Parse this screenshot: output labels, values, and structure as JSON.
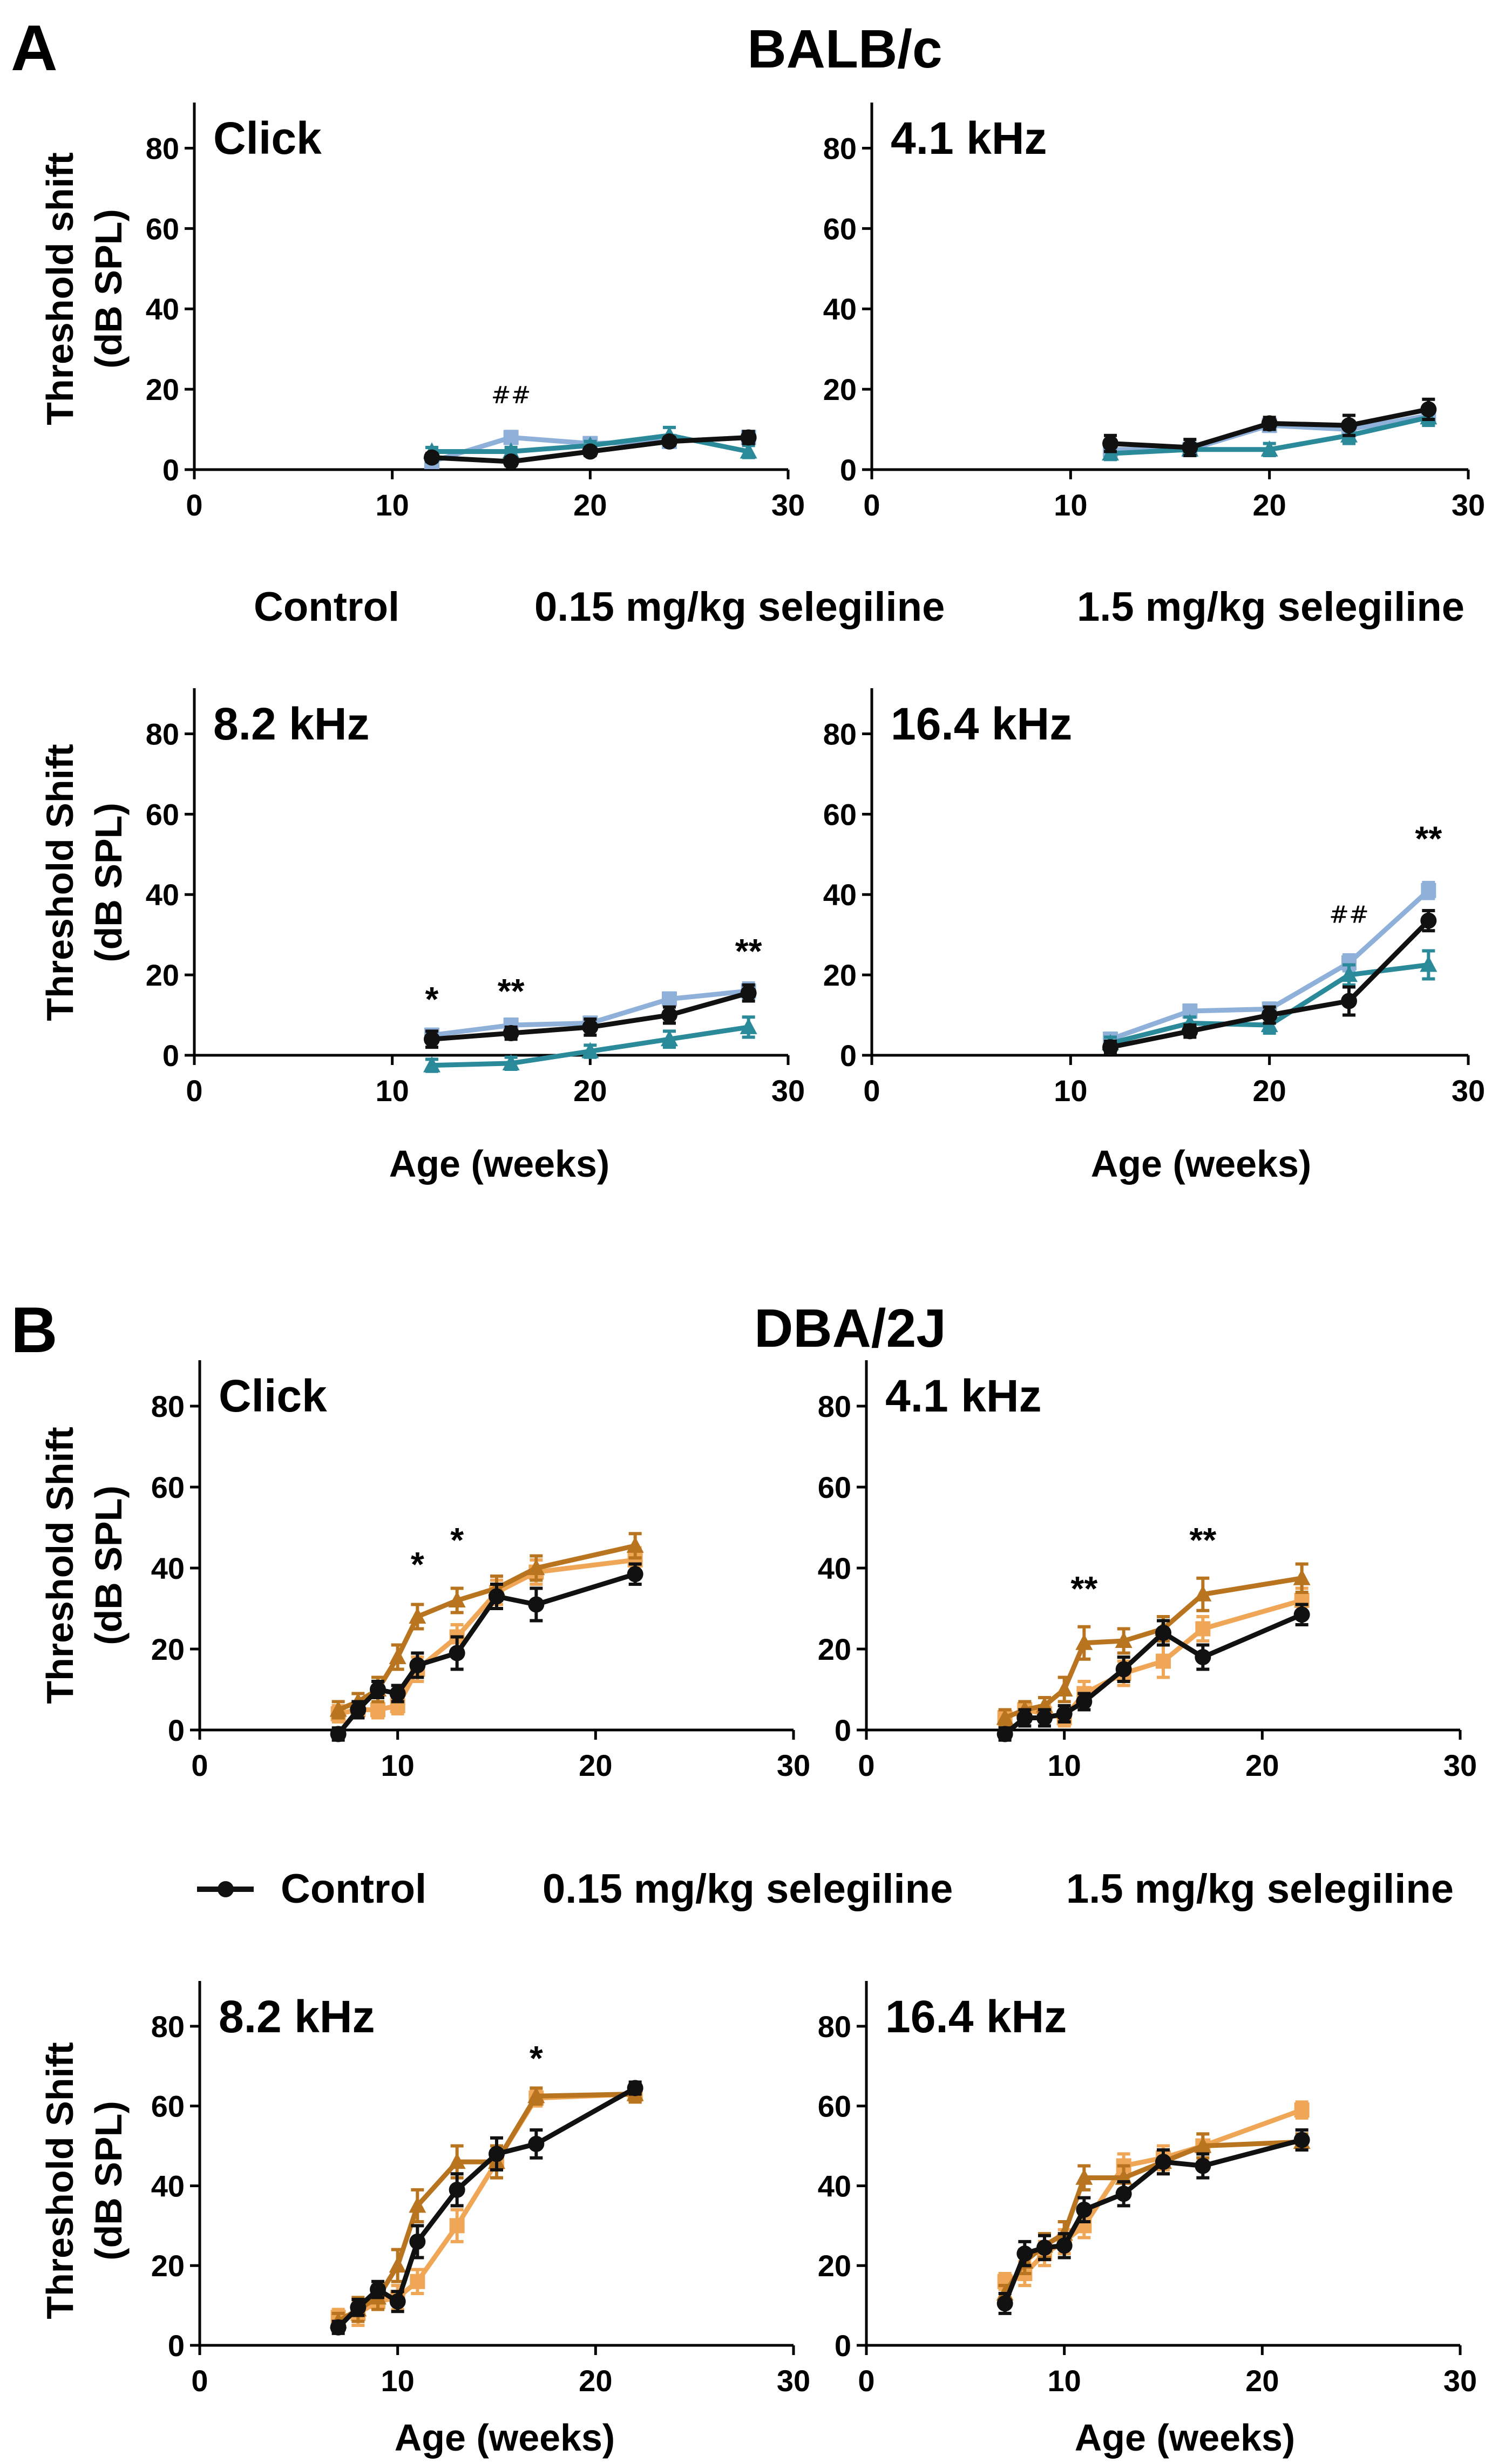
{
  "figure": {
    "section_a": {
      "letter": "A",
      "title": "BALB/c"
    },
    "section_b": {
      "letter": "B",
      "title": "DBA/2J"
    },
    "xaxis_label": "Age (weeks)",
    "ylabel_a_top": [
      "Threshold shift",
      "(dB SPL)"
    ],
    "ylabel_rest": [
      "Threshold Shift",
      "(dB SPL)"
    ],
    "legend_a": [
      "Control",
      "0.15 mg/kg selegiline",
      "1.5 mg/kg selegiline"
    ],
    "legend_b": [
      "Control",
      "0.15 mg/kg selegiline",
      "1.5 mg/kg selegiline"
    ]
  },
  "colors": {
    "control": "#111111",
    "balb_015": "#8fb1d9",
    "balb_15": "#2b8a9a",
    "dba_015": "#f0a657",
    "dba_15": "#b8741f"
  },
  "chart_data": [
    {
      "type": "line",
      "panel": "BALB/c Click",
      "title": "Click",
      "xlim": [
        0,
        30
      ],
      "ylim": [
        0,
        90
      ],
      "xticks": [
        0,
        10,
        20,
        30
      ],
      "yticks": [
        0,
        20,
        40,
        60,
        80
      ],
      "ylabel": "Threshold shift (dB SPL)",
      "xlabel": "",
      "series": [
        {
          "name": "0.15 mg/kg selegiline",
          "color": "#8fb1d9",
          "x": [
            12,
            16,
            20,
            24,
            28
          ],
          "y": [
            2,
            8,
            6.5,
            7,
            8
          ],
          "err": [
            1,
            1.5,
            1,
            1.5,
            1
          ]
        },
        {
          "name": "1.5 mg/kg selegiline",
          "color": "#2b8a9a",
          "x": [
            12,
            16,
            20,
            24,
            28
          ],
          "y": [
            4.5,
            4.5,
            6,
            8.5,
            4.5
          ],
          "err": [
            1,
            1,
            1,
            2,
            1.5
          ]
        },
        {
          "name": "Control",
          "color": "#111111",
          "x": [
            12,
            16,
            20,
            24,
            28
          ],
          "y": [
            3,
            2,
            4.5,
            7,
            8
          ],
          "err": [
            1,
            1,
            1,
            1,
            1.5
          ]
        }
      ],
      "annotations": [
        {
          "x": 16,
          "y": 16.5,
          "text": "##"
        }
      ]
    },
    {
      "type": "line",
      "panel": "BALB/c 4.1 kHz",
      "title": "4.1 kHz",
      "xlim": [
        0,
        30
      ],
      "ylim": [
        0,
        90
      ],
      "xticks": [
        0,
        10,
        20,
        30
      ],
      "yticks": [
        0,
        20,
        40,
        60,
        80
      ],
      "ylabel": "",
      "xlabel": "",
      "series": [
        {
          "name": "0.15 mg/kg selegiline",
          "color": "#8fb1d9",
          "x": [
            12,
            16,
            20,
            24,
            28
          ],
          "y": [
            5,
            5,
            11,
            10,
            13.5
          ],
          "err": [
            1.5,
            1.5,
            1.5,
            2,
            2
          ]
        },
        {
          "name": "1.5 mg/kg selegiline",
          "color": "#2b8a9a",
          "x": [
            12,
            16,
            20,
            24,
            28
          ],
          "y": [
            4,
            5,
            5,
            8.5,
            13
          ],
          "err": [
            1.5,
            1.5,
            1.5,
            2,
            2
          ]
        },
        {
          "name": "Control",
          "color": "#111111",
          "x": [
            12,
            16,
            20,
            24,
            28
          ],
          "y": [
            6.5,
            5.5,
            11.5,
            11,
            15
          ],
          "err": [
            2,
            2,
            1.5,
            2.5,
            2.5
          ]
        }
      ],
      "annotations": []
    },
    {
      "type": "line",
      "panel": "BALB/c 8.2 kHz",
      "title": "8.2 kHz",
      "xlim": [
        0,
        30
      ],
      "ylim": [
        0,
        90
      ],
      "xticks": [
        0,
        10,
        20,
        30
      ],
      "yticks": [
        0,
        20,
        40,
        60,
        80
      ],
      "ylabel": "Threshold Shift (dB SPL)",
      "xlabel": "Age (weeks)",
      "series": [
        {
          "name": "0.15 mg/kg selegiline",
          "color": "#8fb1d9",
          "x": [
            12,
            16,
            20,
            24,
            28
          ],
          "y": [
            5,
            7.5,
            8,
            14,
            16
          ],
          "err": [
            1.5,
            1.5,
            1.5,
            1.5,
            2
          ]
        },
        {
          "name": "1.5 mg/kg selegiline",
          "color": "#2b8a9a",
          "x": [
            12,
            16,
            20,
            24,
            28
          ],
          "y": [
            -2.5,
            -2,
            1,
            4,
            7
          ],
          "err": [
            1.5,
            1.5,
            1.5,
            2,
            2.5
          ]
        },
        {
          "name": "Control",
          "color": "#111111",
          "x": [
            12,
            16,
            20,
            24,
            28
          ],
          "y": [
            4,
            5.5,
            7,
            10,
            15.5
          ],
          "err": [
            2,
            1.5,
            2,
            2,
            2
          ]
        }
      ],
      "annotations": [
        {
          "x": 12,
          "y": 11,
          "text": "*"
        },
        {
          "x": 16,
          "y": 13,
          "text": "**"
        },
        {
          "x": 28,
          "y": 23,
          "text": "**"
        }
      ]
    },
    {
      "type": "line",
      "panel": "BALB/c 16.4 kHz",
      "title": "16.4 kHz",
      "xlim": [
        0,
        30
      ],
      "ylim": [
        0,
        90
      ],
      "xticks": [
        0,
        10,
        20,
        30
      ],
      "yticks": [
        0,
        20,
        40,
        60,
        80
      ],
      "ylabel": "",
      "xlabel": "Age (weeks)",
      "series": [
        {
          "name": "0.15 mg/kg selegiline",
          "color": "#8fb1d9",
          "x": [
            12,
            16,
            20,
            24,
            28
          ],
          "y": [
            4,
            11,
            11.5,
            23,
            41
          ],
          "err": [
            1.5,
            1.5,
            1.5,
            2,
            2
          ]
        },
        {
          "name": "1.5 mg/kg selegiline",
          "color": "#2b8a9a",
          "x": [
            12,
            16,
            20,
            24,
            28
          ],
          "y": [
            3,
            8,
            7.5,
            20,
            22.5
          ],
          "err": [
            1.5,
            1.5,
            2,
            2.5,
            3.5
          ]
        },
        {
          "name": "Control",
          "color": "#111111",
          "x": [
            12,
            16,
            20,
            24,
            28
          ],
          "y": [
            2,
            6,
            10,
            13.5,
            33.5
          ],
          "err": [
            1.5,
            1.5,
            2,
            3.5,
            2.5
          ]
        }
      ],
      "annotations": [
        {
          "x": 24,
          "y": 33,
          "text": "##"
        },
        {
          "x": 28,
          "y": 51,
          "text": "**"
        }
      ]
    },
    {
      "type": "line",
      "panel": "DBA/2J Click",
      "title": "Click",
      "xlim": [
        0,
        30
      ],
      "ylim": [
        0,
        90
      ],
      "xticks": [
        0,
        10,
        20,
        30
      ],
      "yticks": [
        0,
        20,
        40,
        60,
        80
      ],
      "ylabel": "Threshold Shift (dB SPL)",
      "xlabel": "",
      "series": [
        {
          "name": "0.15 mg/kg selegiline",
          "color": "#f0a657",
          "x": [
            7,
            8,
            9,
            10,
            11,
            13,
            15,
            17,
            22
          ],
          "y": [
            4,
            5,
            5,
            6,
            15,
            23,
            34,
            39,
            42
          ],
          "err": [
            2,
            2,
            2,
            2,
            3,
            3,
            3,
            3,
            3
          ]
        },
        {
          "name": "1.5 mg/kg selegiline",
          "color": "#b8741f",
          "x": [
            7,
            8,
            9,
            10,
            11,
            13,
            15,
            17,
            22
          ],
          "y": [
            5,
            7,
            10,
            18,
            28,
            32,
            35,
            40,
            45.5
          ],
          "err": [
            2,
            2,
            3,
            3,
            3,
            3,
            3,
            3,
            3
          ]
        },
        {
          "name": "Control",
          "color": "#111111",
          "x": [
            7,
            8,
            9,
            10,
            11,
            13,
            15,
            17,
            22
          ],
          "y": [
            -1,
            5,
            10,
            9,
            16,
            19,
            33,
            31,
            38.5
          ],
          "err": [
            1.5,
            2,
            2,
            2,
            3,
            4,
            3,
            4,
            2.5
          ]
        }
      ],
      "annotations": [
        {
          "x": 11,
          "y": 38,
          "text": "*"
        },
        {
          "x": 13,
          "y": 44,
          "text": "*"
        }
      ]
    },
    {
      "type": "line",
      "panel": "DBA/2J 4.1 kHz",
      "title": "4.1 kHz",
      "xlim": [
        0,
        30
      ],
      "ylim": [
        0,
        90
      ],
      "xticks": [
        0,
        10,
        20,
        30
      ],
      "yticks": [
        0,
        20,
        40,
        60,
        80
      ],
      "ylabel": "",
      "xlabel": "",
      "series": [
        {
          "name": "0.15 mg/kg selegiline",
          "color": "#f0a657",
          "x": [
            7,
            8,
            9,
            10,
            11,
            13,
            15,
            17,
            22
          ],
          "y": [
            3,
            5,
            4,
            3,
            9,
            14,
            17,
            25,
            32
          ],
          "err": [
            2,
            2,
            2,
            2,
            3,
            3,
            4,
            3,
            3
          ]
        },
        {
          "name": "1.5 mg/kg selegiline",
          "color": "#b8741f",
          "x": [
            7,
            8,
            9,
            10,
            11,
            13,
            15,
            17,
            22
          ],
          "y": [
            3,
            5,
            6,
            10,
            21.5,
            22,
            25,
            33.5,
            37.5
          ],
          "err": [
            2,
            2,
            2,
            3,
            4,
            3,
            3,
            4,
            3.5
          ]
        },
        {
          "name": "Control",
          "color": "#111111",
          "x": [
            7,
            8,
            9,
            10,
            11,
            13,
            15,
            17,
            22
          ],
          "y": [
            -1,
            3,
            3,
            4,
            7,
            15,
            24,
            18,
            28.5
          ],
          "err": [
            1.5,
            2,
            2,
            2,
            2,
            3,
            3,
            3,
            2.5
          ]
        }
      ],
      "annotations": [
        {
          "x": 11,
          "y": 32,
          "text": "**"
        },
        {
          "x": 17,
          "y": 44,
          "text": "**"
        }
      ]
    },
    {
      "type": "line",
      "panel": "DBA/2J 8.2 kHz",
      "title": "8.2 kHz",
      "xlim": [
        0,
        30
      ],
      "ylim": [
        0,
        90
      ],
      "xticks": [
        0,
        10,
        20,
        30
      ],
      "yticks": [
        0,
        20,
        40,
        60,
        80
      ],
      "ylabel": "Threshold Shift (dB SPL)",
      "xlabel": "Age (weeks)",
      "series": [
        {
          "name": "0.15 mg/kg selegiline",
          "color": "#f0a657",
          "x": [
            7,
            8,
            9,
            10,
            11,
            13,
            15,
            17,
            22
          ],
          "y": [
            7,
            8,
            11,
            12,
            16,
            30,
            46,
            62,
            63
          ],
          "err": [
            2,
            3,
            2,
            3,
            3,
            4,
            4,
            2,
            2
          ]
        },
        {
          "name": "1.5 mg/kg selegiline",
          "color": "#b8741f",
          "x": [
            7,
            8,
            9,
            10,
            11,
            13,
            15,
            17,
            22
          ],
          "y": [
            6,
            9,
            12,
            20,
            35,
            46,
            46,
            62.5,
            63
          ],
          "err": [
            2,
            3,
            3,
            4,
            4,
            4,
            4,
            2,
            2
          ]
        },
        {
          "name": "Control",
          "color": "#111111",
          "x": [
            7,
            8,
            9,
            10,
            11,
            13,
            15,
            17,
            22
          ],
          "y": [
            4.5,
            9.5,
            14,
            11,
            26,
            39,
            48,
            50.5,
            64.5
          ],
          "err": [
            1.5,
            2,
            2,
            2.5,
            4,
            4,
            4,
            3.5,
            1.5
          ]
        }
      ],
      "annotations": [
        {
          "x": 17,
          "y": 69,
          "text": "*"
        }
      ]
    },
    {
      "type": "line",
      "panel": "DBA/2J 16.4 kHz",
      "title": "16.4 kHz",
      "xlim": [
        0,
        30
      ],
      "ylim": [
        0,
        90
      ],
      "xticks": [
        0,
        10,
        20,
        30
      ],
      "yticks": [
        0,
        20,
        40,
        60,
        80
      ],
      "ylabel": "",
      "xlabel": "Age (weeks)",
      "series": [
        {
          "name": "0.15 mg/kg selegiline",
          "color": "#f0a657",
          "x": [
            7,
            8,
            9,
            10,
            11,
            13,
            15,
            17,
            22
          ],
          "y": [
            16,
            18,
            23,
            26,
            30,
            45,
            47,
            50,
            59
          ],
          "err": [
            2,
            3,
            3,
            3,
            3,
            3,
            3,
            3,
            2
          ]
        },
        {
          "name": "1.5 mg/kg selegiline",
          "color": "#b8741f",
          "x": [
            7,
            8,
            9,
            10,
            11,
            13,
            15,
            17,
            22
          ],
          "y": [
            13,
            21,
            25,
            28,
            42,
            42,
            46,
            50,
            51
          ],
          "err": [
            2,
            3,
            3,
            3,
            3,
            3,
            3,
            3,
            2
          ]
        },
        {
          "name": "Control",
          "color": "#111111",
          "x": [
            7,
            8,
            9,
            10,
            11,
            13,
            15,
            17,
            22
          ],
          "y": [
            10.5,
            23,
            24.5,
            25,
            34,
            38,
            46,
            45,
            51.5
          ],
          "err": [
            2.5,
            3,
            3,
            3,
            3,
            3,
            3,
            3,
            2.5
          ]
        }
      ],
      "annotations": []
    }
  ]
}
